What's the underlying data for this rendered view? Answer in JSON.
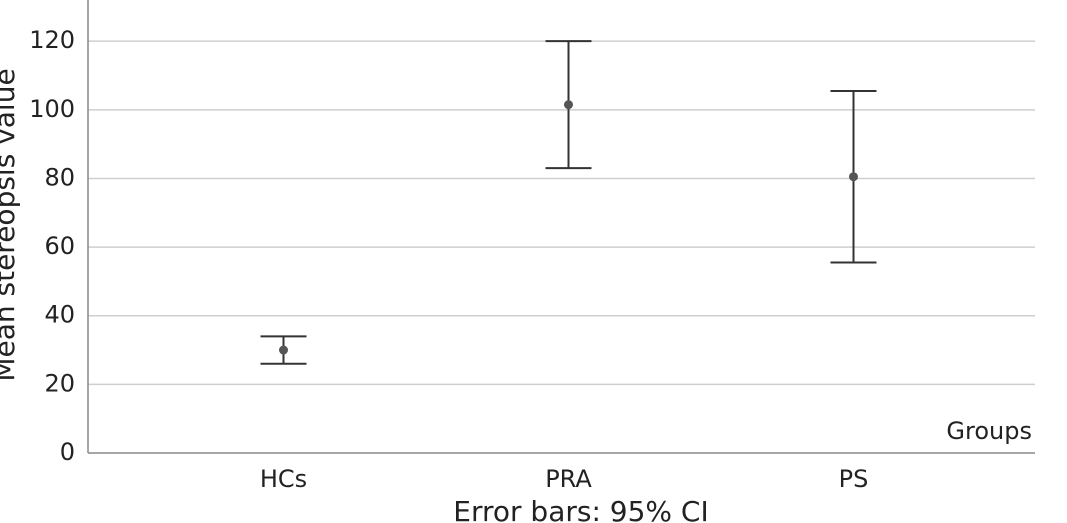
{
  "chart_data": {
    "type": "errorbar",
    "title": "Error bars: 95% CI",
    "y_label": "Mean stereopsis value",
    "x_label": "Groups",
    "categories": [
      "HCs",
      "PRA",
      "PS"
    ],
    "values": [
      30,
      101.5,
      80.5
    ],
    "lower": [
      26,
      83,
      55.5
    ],
    "upper": [
      34,
      120,
      105.5
    ],
    "color": "#555555",
    "ylim": [
      0,
      132
    ],
    "yticks": [
      0,
      20,
      40,
      60,
      80,
      100,
      120
    ],
    "grid": true
  }
}
